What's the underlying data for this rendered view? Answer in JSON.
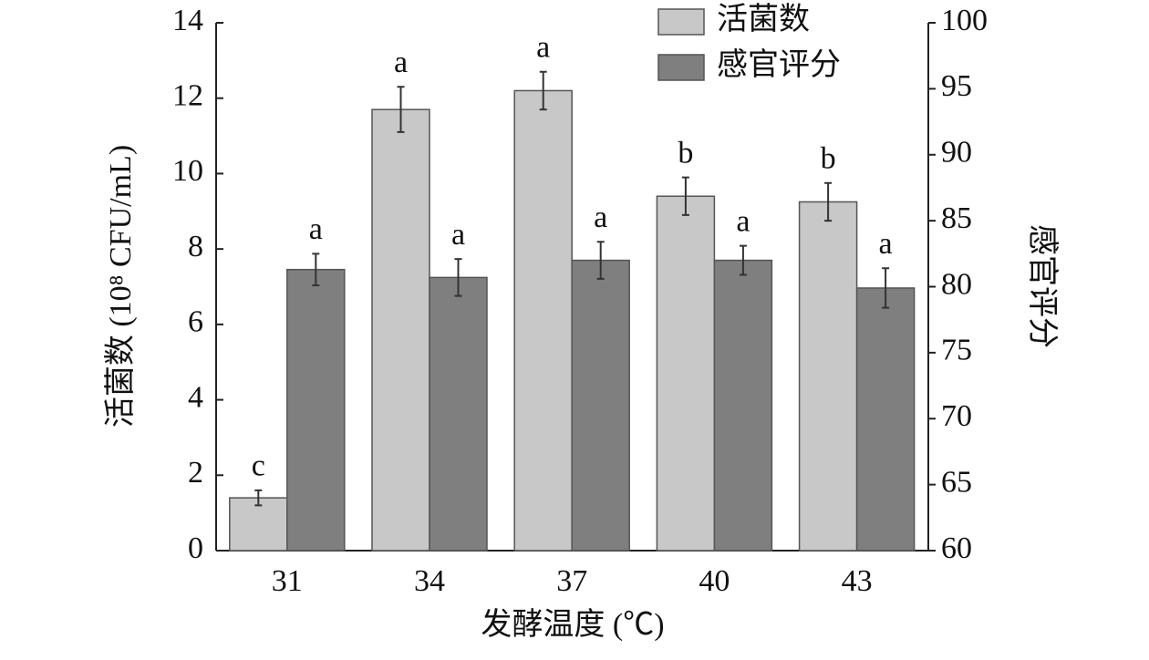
{
  "chart_data": {
    "type": "bar",
    "categories": [
      "31",
      "34",
      "37",
      "40",
      "43"
    ],
    "x_label": "发酵温度 (℃)",
    "y_label": "活菌数 (10⁸ CFU/mL)",
    "y2_label": "感官评分",
    "ylim": [
      0,
      14
    ],
    "yticks": [
      0,
      2,
      4,
      6,
      8,
      10,
      12,
      14
    ],
    "y2lim": [
      60,
      100
    ],
    "y2ticks": [
      60,
      65,
      70,
      75,
      80,
      85,
      90,
      95,
      100
    ],
    "legend": "top-right",
    "series": [
      {
        "name": "活菌数",
        "color": "#c8c8c8",
        "values": [
          1.4,
          11.7,
          12.2,
          9.4,
          9.25
        ],
        "errors": [
          0.2,
          0.6,
          0.5,
          0.5,
          0.5
        ],
        "labels": [
          "c",
          "a",
          "a",
          "b",
          "b"
        ]
      },
      {
        "name": "感官评分",
        "color": "#7f7f7f",
        "axis": "y2",
        "values": [
          81.3,
          80.7,
          82.0,
          82.0,
          79.9
        ],
        "errors": [
          1.2,
          1.4,
          1.4,
          1.1,
          1.5
        ],
        "labels": [
          "a",
          "a",
          "a",
          "a",
          "a"
        ]
      }
    ]
  }
}
